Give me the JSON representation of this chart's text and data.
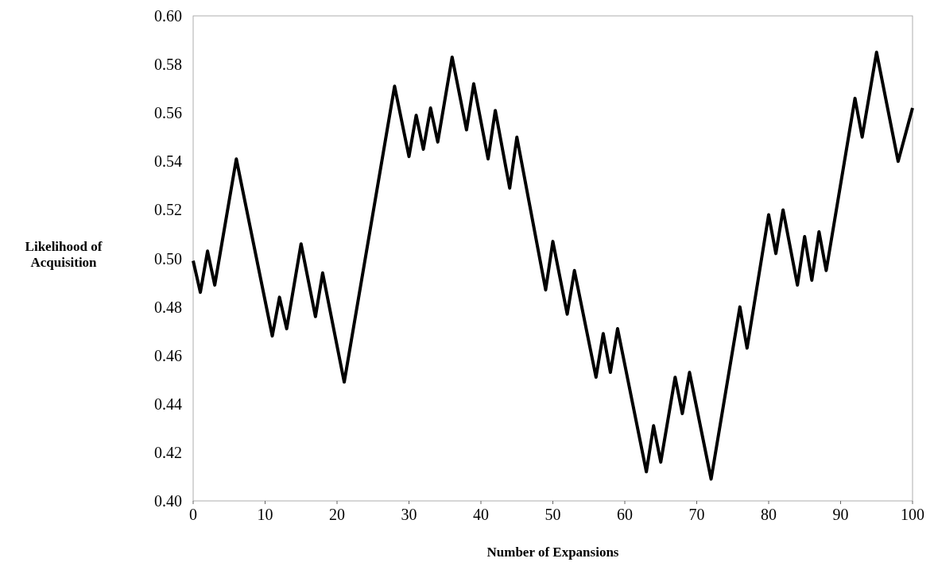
{
  "chart_data": {
    "type": "line",
    "xlabel": "Number of Expansions",
    "ylabel": "Likelihood of\nAcquisition",
    "x": [
      0,
      1,
      2,
      3,
      6,
      11,
      12,
      13,
      15,
      17,
      18,
      21,
      28,
      30,
      31,
      32,
      33,
      34,
      36,
      38,
      39,
      41,
      42,
      44,
      45,
      49,
      50,
      52,
      53,
      56,
      57,
      58,
      59,
      63,
      64,
      65,
      67,
      68,
      69,
      72,
      76,
      77,
      80,
      81,
      82,
      84,
      85,
      86,
      87,
      88,
      92,
      93,
      95,
      98,
      100
    ],
    "series": [
      {
        "color": "#000000",
        "values": [
          0.499,
          0.486,
          0.503,
          0.489,
          0.541,
          0.468,
          0.484,
          0.471,
          0.506,
          0.476,
          0.494,
          0.449,
          0.571,
          0.542,
          0.559,
          0.545,
          0.562,
          0.548,
          0.583,
          0.553,
          0.572,
          0.541,
          0.561,
          0.529,
          0.55,
          0.487,
          0.507,
          0.477,
          0.495,
          0.451,
          0.469,
          0.453,
          0.471,
          0.412,
          0.431,
          0.416,
          0.451,
          0.436,
          0.453,
          0.409,
          0.48,
          0.463,
          0.518,
          0.502,
          0.52,
          0.489,
          0.509,
          0.491,
          0.511,
          0.495,
          0.566,
          0.55,
          0.585,
          0.54,
          0.562
        ]
      }
    ],
    "xlim": [
      0,
      100
    ],
    "xticks": [
      0,
      10,
      20,
      30,
      40,
      50,
      60,
      70,
      80,
      90,
      100
    ],
    "ylim": [
      0.4,
      0.6
    ],
    "yticks": [
      {
        "value": 0.4,
        "label": "0.40"
      },
      {
        "value": 0.42,
        "label": "0.42"
      },
      {
        "value": 0.44,
        "label": "0.44"
      },
      {
        "value": 0.46,
        "label": "0.46"
      },
      {
        "value": 0.48,
        "label": "0.48"
      },
      {
        "value": 0.5,
        "label": "0.50"
      },
      {
        "value": 0.52,
        "label": "0.52"
      },
      {
        "value": 0.54,
        "label": "0.54"
      },
      {
        "value": 0.56,
        "label": "0.56"
      },
      {
        "value": 0.58,
        "label": "0.58"
      },
      {
        "value": 0.6,
        "label": "0.60"
      }
    ],
    "grid": false,
    "marker": "none",
    "line_style": "solid"
  }
}
